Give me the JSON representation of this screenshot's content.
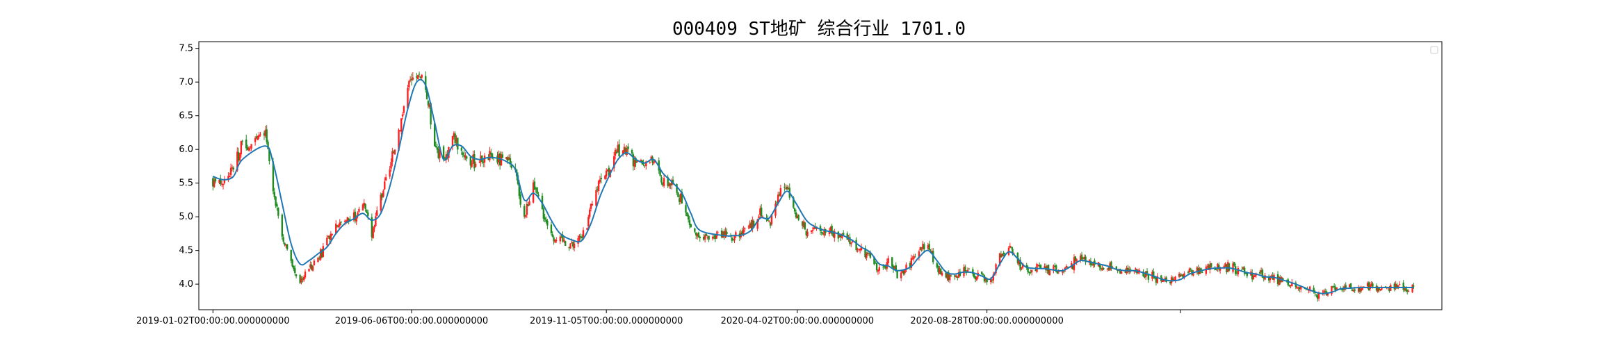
{
  "chart_data": {
    "type": "candlestick",
    "title": "000409 ST地矿 综合行业 1701.0",
    "xlabel": "",
    "ylabel": "",
    "ylim": [
      3.62,
      7.6
    ],
    "yticks": [
      4.0,
      4.5,
      5.0,
      5.5,
      6.0,
      6.5,
      7.0,
      7.5
    ],
    "ytick_labels": [
      "4.0",
      "4.5",
      "5.0",
      "5.5",
      "6.0",
      "6.5",
      "7.0",
      "7.5"
    ],
    "xlim": [
      "2018-12-22",
      "2021-08-18"
    ],
    "x_ticks": [
      "2019-01-02",
      "2019-06-06",
      "2019-11-05",
      "2020-04-02",
      "2020-08-28",
      "2021-01-26"
    ],
    "x_tick_labels": [
      "2019-01-02T00:00:00.000000000",
      "2019-06-06T00:00:00.000000000",
      "2019-11-05T00:00:00.000000000",
      "2020-04-02T00:00:00.000000000",
      "2020-08-28T00:00:00.000000000",
      ""
    ],
    "legend_position": "upper-right",
    "colors": {
      "up": "#ff2020",
      "down": "#1e8c1e",
      "ma_line": "#1f77b4"
    },
    "close_trend": {
      "dates": [
        "2019-01-02",
        "2019-01-10",
        "2019-01-18",
        "2019-01-25",
        "2019-02-12",
        "2019-02-18",
        "2019-02-25",
        "2019-03-04",
        "2019-03-11",
        "2019-03-18",
        "2019-03-25",
        "2019-04-01",
        "2019-04-08",
        "2019-04-15",
        "2019-04-22",
        "2019-04-29",
        "2019-05-06",
        "2019-05-13",
        "2019-05-20",
        "2019-05-27",
        "2019-06-03",
        "2019-06-10",
        "2019-06-17",
        "2019-06-24",
        "2019-07-01",
        "2019-07-08",
        "2019-07-15",
        "2019-07-22",
        "2019-07-29",
        "2019-08-05",
        "2019-08-12",
        "2019-08-19",
        "2019-08-26",
        "2019-09-02",
        "2019-09-09",
        "2019-09-16",
        "2019-09-23",
        "2019-09-30",
        "2019-10-10",
        "2019-10-17",
        "2019-10-24",
        "2019-10-31",
        "2019-11-07",
        "2019-11-14",
        "2019-11-21",
        "2019-11-28",
        "2019-12-05",
        "2019-12-12",
        "2019-12-19",
        "2019-12-26",
        "2020-01-03",
        "2020-01-10",
        "2020-01-17",
        "2020-02-05",
        "2020-02-12",
        "2020-02-19",
        "2020-02-26",
        "2020-03-04",
        "2020-03-11",
        "2020-03-18",
        "2020-03-25",
        "2020-04-01",
        "2020-04-09",
        "2020-04-16",
        "2020-04-23",
        "2020-04-30",
        "2020-05-08",
        "2020-05-15",
        "2020-05-22",
        "2020-05-29",
        "2020-06-05",
        "2020-06-12",
        "2020-06-19",
        "2020-06-29",
        "2020-07-06",
        "2020-07-13",
        "2020-07-20",
        "2020-07-27",
        "2020-08-03",
        "2020-08-10",
        "2020-08-17",
        "2020-08-24",
        "2020-08-31",
        "2020-09-07",
        "2020-09-14",
        "2020-09-21",
        "2020-09-28",
        "2020-10-12",
        "2020-10-19",
        "2020-10-26",
        "2020-11-02",
        "2020-11-09",
        "2020-11-16",
        "2020-11-23",
        "2020-11-30",
        "2020-12-07",
        "2020-12-14",
        "2020-12-21",
        "2020-12-28",
        "2021-01-05",
        "2021-01-12",
        "2021-01-19",
        "2021-01-26",
        "2021-02-02",
        "2021-02-09",
        "2021-02-19",
        "2021-02-26",
        "2021-03-05",
        "2021-03-12",
        "2021-03-19",
        "2021-03-26",
        "2021-04-02",
        "2021-04-09",
        "2021-04-16",
        "2021-04-23",
        "2021-04-30",
        "2021-05-10",
        "2021-05-17",
        "2021-05-24",
        "2021-05-31",
        "2021-06-07",
        "2021-06-15",
        "2021-06-22",
        "2021-06-29",
        "2021-07-06",
        "2021-07-13",
        "2021-07-20",
        "2021-07-27"
      ],
      "close": [
        5.55,
        5.5,
        5.75,
        6.05,
        6.2,
        5.4,
        4.7,
        4.3,
        4.05,
        4.25,
        4.4,
        4.6,
        4.9,
        4.95,
        5.0,
        5.2,
        4.75,
        5.3,
        5.7,
        6.3,
        6.9,
        7.1,
        6.9,
        6.1,
        5.8,
        6.2,
        6.0,
        5.8,
        5.85,
        5.9,
        5.85,
        5.8,
        5.65,
        5.0,
        5.45,
        5.1,
        4.75,
        4.65,
        4.6,
        4.7,
        5.1,
        5.6,
        5.7,
        5.95,
        6.0,
        5.75,
        5.8,
        5.85,
        5.5,
        5.5,
        5.2,
        4.85,
        4.65,
        4.75,
        4.7,
        4.75,
        4.85,
        5.1,
        4.9,
        5.35,
        5.45,
        5.0,
        4.8,
        4.8,
        4.8,
        4.75,
        4.7,
        4.6,
        4.5,
        4.4,
        4.2,
        4.3,
        4.15,
        4.3,
        4.5,
        4.55,
        4.25,
        4.1,
        4.15,
        4.2,
        4.15,
        4.1,
        4.05,
        4.4,
        4.55,
        4.3,
        4.2,
        4.25,
        4.2,
        4.2,
        4.3,
        4.4,
        4.3,
        4.3,
        4.25,
        4.2,
        4.2,
        4.2,
        4.15,
        4.1,
        4.05,
        4.05,
        4.1,
        4.2,
        4.2,
        4.25,
        4.25,
        4.25,
        4.2,
        4.15,
        4.15,
        4.1,
        4.1,
        4.05,
        4.0,
        3.95,
        3.85,
        3.85,
        3.9,
        3.95,
        3.95,
        3.95,
        3.95,
        3.95,
        3.95,
        3.95,
        3.95,
        3.95
      ],
      "ma": [
        5.6,
        5.55,
        5.6,
        5.85,
        6.05,
        5.8,
        5.2,
        4.6,
        4.3,
        4.35,
        4.45,
        4.55,
        4.75,
        4.9,
        4.97,
        5.05,
        4.95,
        5.05,
        5.45,
        6.0,
        6.6,
        7.0,
        6.95,
        6.4,
        5.85,
        6.05,
        6.05,
        5.9,
        5.85,
        5.88,
        5.87,
        5.82,
        5.7,
        5.25,
        5.35,
        5.2,
        4.95,
        4.75,
        4.65,
        4.65,
        4.9,
        5.3,
        5.6,
        5.85,
        5.95,
        5.85,
        5.8,
        5.85,
        5.65,
        5.52,
        5.35,
        5.05,
        4.8,
        4.72,
        4.72,
        4.73,
        4.8,
        4.98,
        4.98,
        5.2,
        5.38,
        5.2,
        4.95,
        4.85,
        4.8,
        4.77,
        4.72,
        4.65,
        4.55,
        4.47,
        4.3,
        4.27,
        4.2,
        4.25,
        4.4,
        4.5,
        4.35,
        4.18,
        4.15,
        4.18,
        4.17,
        4.12,
        4.08,
        4.3,
        4.48,
        4.38,
        4.25,
        4.23,
        4.21,
        4.2,
        4.27,
        4.35,
        4.33,
        4.3,
        4.27,
        4.22,
        4.2,
        4.2,
        4.17,
        4.12,
        4.07,
        4.05,
        4.07,
        4.15,
        4.19,
        4.23,
        4.24,
        4.24,
        4.21,
        4.17,
        4.15,
        4.11,
        4.1,
        4.06,
        4.02,
        3.97,
        3.89,
        3.86,
        3.88,
        3.93,
        3.94,
        3.95,
        3.95,
        3.95,
        3.95,
        3.95,
        3.95,
        3.95
      ]
    }
  }
}
